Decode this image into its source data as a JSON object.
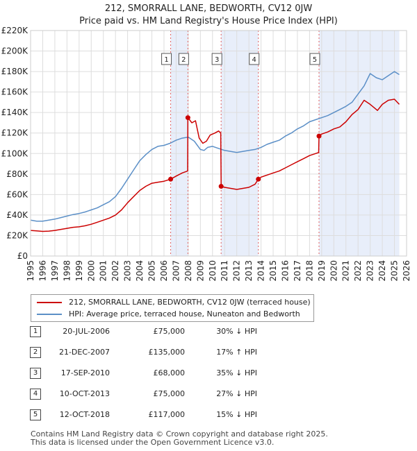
{
  "chart_data": {
    "type": "line",
    "title": "212, SMORRALL LANE, BEDWORTH, CV12 0JW",
    "subtitle": "Price paid vs. HM Land Registry's House Price Index (HPI)",
    "xlim": [
      1995,
      2026
    ],
    "ylim": [
      0,
      220000
    ],
    "x_ticks": [
      1995,
      1996,
      1997,
      1998,
      1999,
      2000,
      2001,
      2002,
      2003,
      2004,
      2005,
      2006,
      2007,
      2008,
      2009,
      2010,
      2011,
      2012,
      2013,
      2014,
      2015,
      2016,
      2017,
      2018,
      2019,
      2020,
      2021,
      2022,
      2023,
      2024,
      2025,
      2026
    ],
    "y_ticks": [
      0,
      20000,
      40000,
      60000,
      80000,
      100000,
      120000,
      140000,
      160000,
      180000,
      200000,
      220000
    ],
    "y_tick_labels": [
      "£0",
      "£20K",
      "£40K",
      "£60K",
      "£80K",
      "£100K",
      "£120K",
      "£140K",
      "£160K",
      "£180K",
      "£200K",
      "£220K"
    ],
    "grid": true,
    "shaded_periods": [
      [
        2006.55,
        2007.97
      ],
      [
        2010.71,
        2013.78
      ],
      [
        2018.78,
        2025.4
      ]
    ],
    "series": [
      {
        "name": "212, SMORRALL LANE, BEDWORTH, CV12 0JW (terraced house)",
        "color": "#cc0000",
        "x": [
          1995,
          1995.5,
          1996,
          1996.5,
          1997,
          1997.5,
          1998,
          1998.5,
          1999,
          1999.5,
          2000,
          2000.5,
          2001,
          2001.5,
          2002,
          2002.5,
          2003,
          2003.5,
          2004,
          2004.5,
          2005,
          2005.5,
          2006,
          2006.55,
          2007,
          2007.5,
          2007.95,
          2007.97,
          2008.3,
          2008.6,
          2008.9,
          2009.2,
          2009.5,
          2009.8,
          2010.2,
          2010.5,
          2010.68,
          2010.71,
          2011,
          2011.5,
          2012,
          2012.5,
          2013,
          2013.5,
          2013.78,
          2014,
          2014.5,
          2015,
          2015.5,
          2016,
          2016.5,
          2017,
          2017.5,
          2018,
          2018.5,
          2018.75,
          2018.78,
          2019,
          2019.5,
          2020,
          2020.5,
          2021,
          2021.5,
          2022,
          2022.5,
          2023,
          2023.3,
          2023.6,
          2024,
          2024.5,
          2025,
          2025.4
        ],
        "values": [
          25000,
          24500,
          24000,
          24300,
          25000,
          26000,
          27000,
          28000,
          28500,
          29500,
          31000,
          33000,
          35000,
          37000,
          40000,
          45000,
          52000,
          58000,
          64000,
          68000,
          71000,
          72000,
          73000,
          75000,
          78000,
          81000,
          83000,
          135000,
          130000,
          132000,
          115000,
          110000,
          112000,
          118000,
          120000,
          122000,
          120000,
          68000,
          67000,
          66000,
          65000,
          66000,
          67000,
          70000,
          75000,
          77000,
          79000,
          81000,
          83000,
          86000,
          89000,
          92000,
          95000,
          98000,
          100000,
          101000,
          117000,
          119000,
          121000,
          124000,
          126000,
          131000,
          138000,
          143000,
          152000,
          148000,
          145000,
          142000,
          148000,
          152000,
          153000,
          148000
        ]
      },
      {
        "name": "HPI: Average price, terraced house, Nuneaton and Bedworth",
        "color": "#5b8fc7",
        "x": [
          1995,
          1995.5,
          1996,
          1996.5,
          1997,
          1997.5,
          1998,
          1998.5,
          1999,
          1999.5,
          2000,
          2000.5,
          2001,
          2001.5,
          2002,
          2002.5,
          2003,
          2003.5,
          2004,
          2004.5,
          2005,
          2005.5,
          2006,
          2006.5,
          2007,
          2007.5,
          2008,
          2008.5,
          2009,
          2009.3,
          2009.6,
          2010,
          2010.5,
          2011,
          2011.5,
          2012,
          2012.5,
          2013,
          2013.5,
          2014,
          2014.5,
          2015,
          2015.5,
          2016,
          2016.5,
          2017,
          2017.5,
          2018,
          2018.5,
          2019,
          2019.5,
          2020,
          2020.5,
          2021,
          2021.5,
          2022,
          2022.5,
          2023,
          2023.5,
          2024,
          2024.5,
          2025,
          2025.4
        ],
        "values": [
          35000,
          34000,
          34000,
          35000,
          36000,
          37500,
          39000,
          40500,
          41500,
          43000,
          45000,
          47000,
          50000,
          53000,
          58000,
          66000,
          75000,
          84000,
          93000,
          99000,
          104000,
          107000,
          108000,
          110000,
          113000,
          115000,
          116000,
          112000,
          104000,
          103000,
          106000,
          107000,
          105000,
          103000,
          102000,
          101000,
          102000,
          103000,
          104000,
          106000,
          109000,
          111000,
          113000,
          117000,
          120000,
          124000,
          127000,
          131000,
          133000,
          135000,
          137000,
          140000,
          143000,
          146000,
          150000,
          158000,
          166000,
          178000,
          174000,
          172000,
          176000,
          180000,
          177000
        ]
      }
    ],
    "sale_markers": [
      {
        "id": "1",
        "x": 2006.55,
        "price": 75000
      },
      {
        "id": "2",
        "x": 2007.97,
        "price": 135000
      },
      {
        "id": "3",
        "x": 2010.71,
        "price": 68000
      },
      {
        "id": "4",
        "x": 2013.78,
        "price": 75000
      },
      {
        "id": "5",
        "x": 2018.78,
        "price": 117000
      }
    ]
  },
  "legend": {
    "property_label": "212, SMORRALL LANE, BEDWORTH, CV12 0JW (terraced house)",
    "hpi_label": "HPI: Average price, terraced house, Nuneaton and Bedworth",
    "property_color": "#cc0000",
    "hpi_color": "#5b8fc7"
  },
  "sales": [
    {
      "num": "1",
      "date": "20-JUL-2006",
      "price": "£75,000",
      "hpi": "30% ↓ HPI"
    },
    {
      "num": "2",
      "date": "21-DEC-2007",
      "price": "£135,000",
      "hpi": "17% ↑ HPI"
    },
    {
      "num": "3",
      "date": "17-SEP-2010",
      "price": "£68,000",
      "hpi": "35% ↓ HPI"
    },
    {
      "num": "4",
      "date": "10-OCT-2013",
      "price": "£75,000",
      "hpi": "27% ↓ HPI"
    },
    {
      "num": "5",
      "date": "12-OCT-2018",
      "price": "£117,000",
      "hpi": "15% ↓ HPI"
    }
  ],
  "footer": {
    "line1": "Contains HM Land Registry data © Crown copyright and database right 2025.",
    "line2": "This data is licensed under the Open Government Licence v3.0."
  }
}
